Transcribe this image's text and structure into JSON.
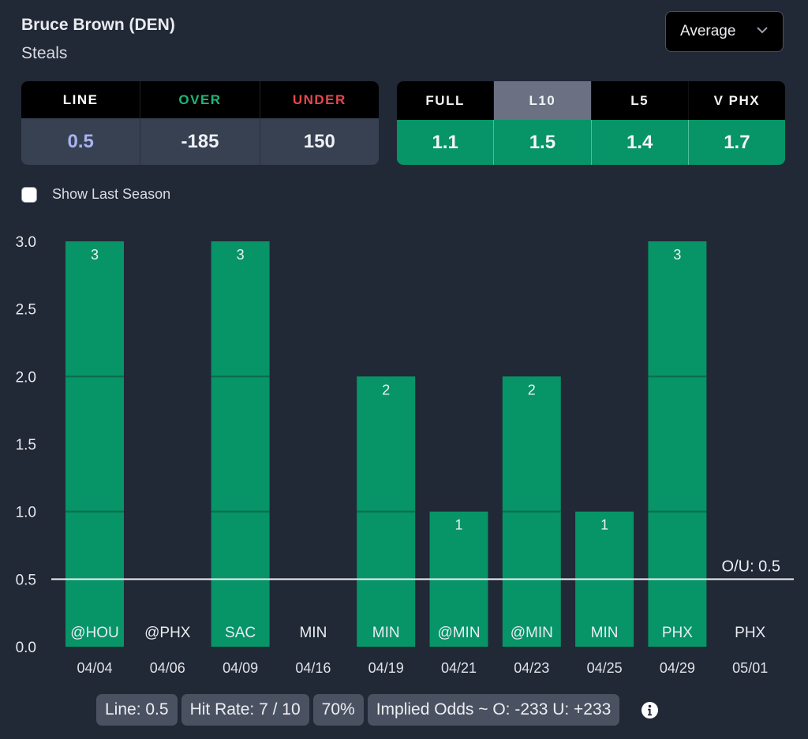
{
  "header": {
    "player": "Bruce Brown (DEN)",
    "stat": "Steals",
    "dropdown": {
      "selected": "Average",
      "icon": "chevron-down-icon"
    }
  },
  "odds_table": {
    "headers": [
      {
        "label": "LINE",
        "color": "#ffffff"
      },
      {
        "label": "OVER",
        "color": "#1fb57d"
      },
      {
        "label": "UNDER",
        "color": "#e5484d"
      }
    ],
    "values": [
      {
        "value": "0.5",
        "color": "#aab3f0"
      },
      {
        "value": "-185",
        "color": "#eef0f3"
      },
      {
        "value": "150",
        "color": "#eef0f3"
      }
    ]
  },
  "avg_table": {
    "headers": [
      "FULL",
      "L10",
      "L5",
      "V PHX"
    ],
    "active_index": 1,
    "values": [
      "1.1",
      "1.5",
      "1.4",
      "1.7"
    ]
  },
  "show_last_season": {
    "label": "Show Last Season",
    "checked": false
  },
  "chart_data": {
    "type": "bar",
    "categories": [
      "04/04",
      "04/06",
      "04/09",
      "04/16",
      "04/19",
      "04/21",
      "04/23",
      "04/25",
      "04/29",
      "05/01"
    ],
    "opponents": [
      "@HOU",
      "@PHX",
      "SAC",
      "MIN",
      "MIN",
      "@MIN",
      "@MIN",
      "MIN",
      "PHX",
      "PHX"
    ],
    "values": [
      3,
      0,
      3,
      0,
      2,
      1,
      2,
      1,
      3,
      0
    ],
    "ylim": [
      0,
      3
    ],
    "yticks": [
      "0.0",
      "0.5",
      "1.0",
      "1.5",
      "2.0",
      "2.5",
      "3.0"
    ],
    "ytick_values": [
      0,
      0.5,
      1,
      1.5,
      2,
      2.5,
      3
    ],
    "reference_line": {
      "value": 0.5,
      "label": "O/U: 0.5"
    },
    "bar_color": "#079467",
    "title": "",
    "xlabel": "",
    "ylabel": "",
    "grid": false,
    "legend": "none"
  },
  "footer": {
    "line": "Line: 0.5",
    "hit_rate": "Hit Rate: 7 / 10",
    "pct": "70%",
    "implied": "Implied Odds ~ O: -233 U: +233",
    "info_icon": "info-icon"
  }
}
